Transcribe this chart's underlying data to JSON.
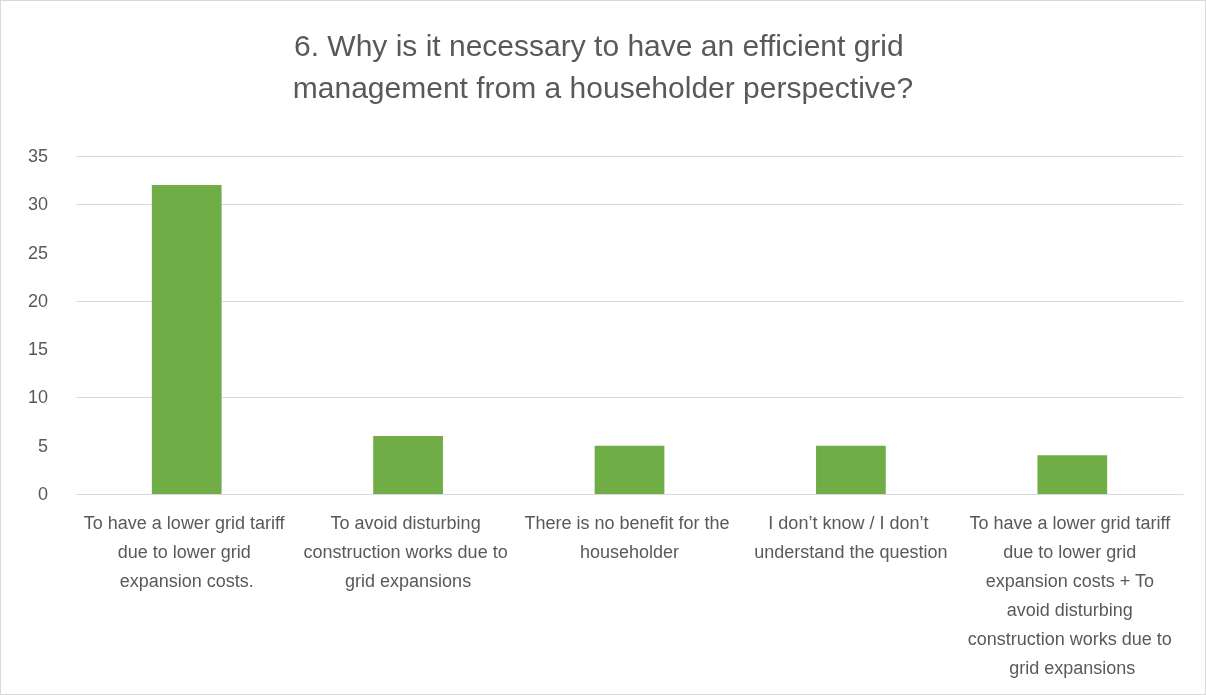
{
  "chart_data": {
    "type": "bar",
    "title": "6. Why is it necessary to have an efficient grid management from a householder perspective?",
    "categories": [
      "To have a lower grid tariff due to lower grid expansion costs.",
      "To avoid disturbing construction works due to grid expansions",
      "There is no benefit for the householder",
      "I don’t know / I don’t understand the question",
      "To have a lower grid tariff due to lower grid expansion costs + To avoid disturbing construction works due to grid expansions"
    ],
    "values": [
      32,
      6,
      5,
      5,
      4
    ],
    "color": "#70ad47",
    "ylim": [
      0,
      35
    ],
    "yticks": [
      0,
      5,
      10,
      15,
      20,
      25,
      30,
      35
    ],
    "grid": "y"
  }
}
